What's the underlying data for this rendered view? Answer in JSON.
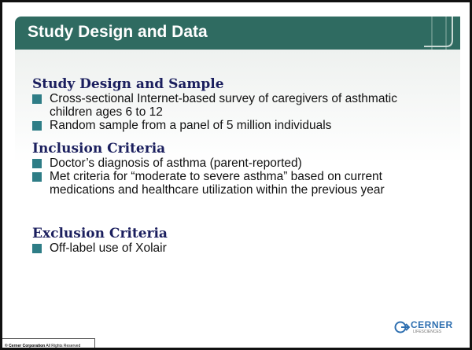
{
  "header": {
    "title": "Study Design and Data"
  },
  "sections": [
    {
      "heading": "Study Design and Sample",
      "bullets": [
        "Cross-sectional Internet-based survey of caregivers of asthmatic children ages 6 to 12",
        "Random sample from a panel of 5 million individuals"
      ]
    },
    {
      "heading": "Inclusion Criteria",
      "bullets": [
        "Doctor’s diagnosis of asthma (parent-reported)",
        "Met criteria for “moderate to severe asthma” based on current medications and healthcare utilization within the previous year"
      ]
    },
    {
      "heading": "Exclusion Criteria",
      "bullets": [
        "Off-label use of Xolair"
      ]
    }
  ],
  "footer": {
    "copyright_bold": "© Cerner Corporation",
    "copyright_rest": "All Rights Reserved",
    "logo": "CERNER",
    "logo_sub": "LIFESCIENCES"
  }
}
